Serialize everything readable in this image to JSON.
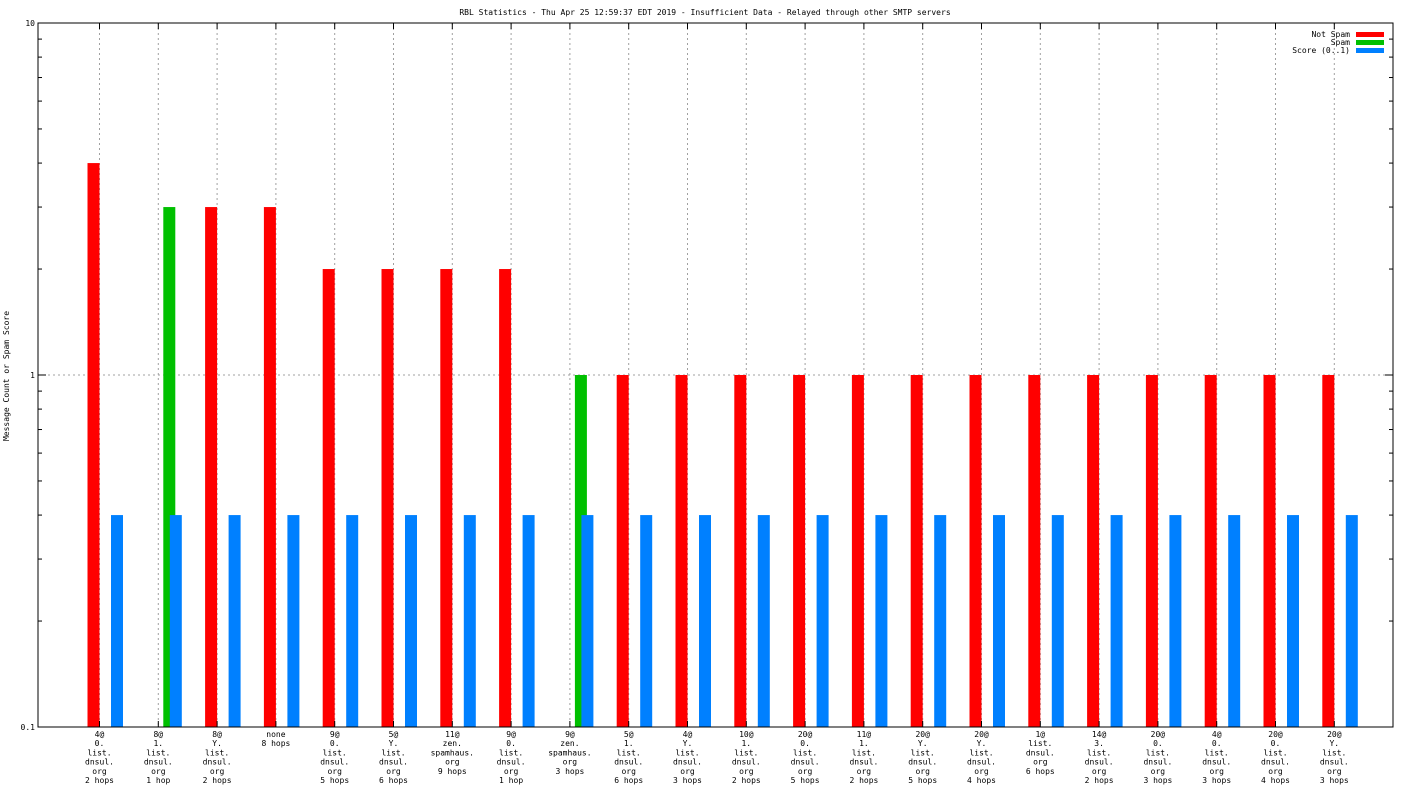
{
  "chart_data": {
    "type": "bar",
    "title": "RBL Statistics - Thu Apr 25 12:59:37 EDT 2019 - Insufficient Data - Relayed through other SMTP servers",
    "xlabel": "",
    "ylabel": "Message Count or Spam Score",
    "yscale": "log",
    "ylim": [
      0.1,
      10
    ],
    "y_ticks": [
      "0.1",
      "1",
      "10"
    ],
    "grid": true,
    "legend_position": "top-right",
    "categories": [
      [
        "4@",
        "0.",
        "list.",
        "dnsul.",
        "org",
        "2 hops"
      ],
      [
        "8@",
        "1.",
        "list.",
        "dnsul.",
        "org",
        "1 hop"
      ],
      [
        "8@",
        "Y.",
        "list.",
        "dnsul.",
        "org",
        "2 hops"
      ],
      [
        "none",
        "8 hops"
      ],
      [
        "9@",
        "0.",
        "list.",
        "dnsul.",
        "org",
        "5 hops"
      ],
      [
        "5@",
        "Y.",
        "list.",
        "dnsul.",
        "org",
        "6 hops"
      ],
      [
        "11@",
        "zen.",
        "spamhaus.",
        "org",
        "9 hops"
      ],
      [
        "9@",
        "0.",
        "list.",
        "dnsul.",
        "org",
        "1 hop"
      ],
      [
        "9@",
        "zen.",
        "spamhaus.",
        "org",
        "3 hops"
      ],
      [
        "5@",
        "1.",
        "list.",
        "dnsul.",
        "org",
        "6 hops"
      ],
      [
        "4@",
        "Y.",
        "list.",
        "dnsul.",
        "org",
        "3 hops"
      ],
      [
        "10@",
        "1.",
        "list.",
        "dnsul.",
        "org",
        "2 hops"
      ],
      [
        "20@",
        "0.",
        "list.",
        "dnsul.",
        "org",
        "5 hops"
      ],
      [
        "11@",
        "1.",
        "list.",
        "dnsul.",
        "org",
        "2 hops"
      ],
      [
        "20@",
        "Y.",
        "list.",
        "dnsul.",
        "org",
        "5 hops"
      ],
      [
        "20@",
        "Y.",
        "list.",
        "dnsul.",
        "org",
        "4 hops"
      ],
      [
        "1@",
        "list.",
        "dnsul.",
        "org",
        "6 hops"
      ],
      [
        "14@",
        "3.",
        "list.",
        "dnsul.",
        "org",
        "2 hops"
      ],
      [
        "20@",
        "0.",
        "list.",
        "dnsul.",
        "org",
        "3 hops"
      ],
      [
        "4@",
        "0.",
        "list.",
        "dnsul.",
        "org",
        "3 hops"
      ],
      [
        "20@",
        "0.",
        "list.",
        "dnsul.",
        "org",
        "4 hops"
      ],
      [
        "20@",
        "Y.",
        "list.",
        "dnsul.",
        "org",
        "3 hops"
      ]
    ],
    "series": [
      {
        "name": "Not Spam",
        "color": "#ff0000",
        "values": [
          4,
          0,
          3,
          3,
          2,
          2,
          2,
          2,
          0,
          1,
          1,
          1,
          1,
          1,
          1,
          1,
          1,
          1,
          1,
          1,
          1,
          1
        ]
      },
      {
        "name": "Spam",
        "color": "#00c000",
        "values": [
          0,
          3,
          0,
          0,
          0,
          0,
          0,
          0,
          1,
          0,
          0,
          0,
          0,
          0,
          0,
          0,
          0,
          0,
          0,
          0,
          0,
          0
        ]
      },
      {
        "name": "Score (0..1)",
        "color": "#0080ff",
        "values": [
          0.4,
          0.4,
          0.4,
          0.4,
          0.4,
          0.4,
          0.4,
          0.4,
          0.4,
          0.4,
          0.4,
          0.4,
          0.4,
          0.4,
          0.4,
          0.4,
          0.4,
          0.4,
          0.4,
          0.4,
          0.4,
          0.4
        ]
      }
    ]
  }
}
